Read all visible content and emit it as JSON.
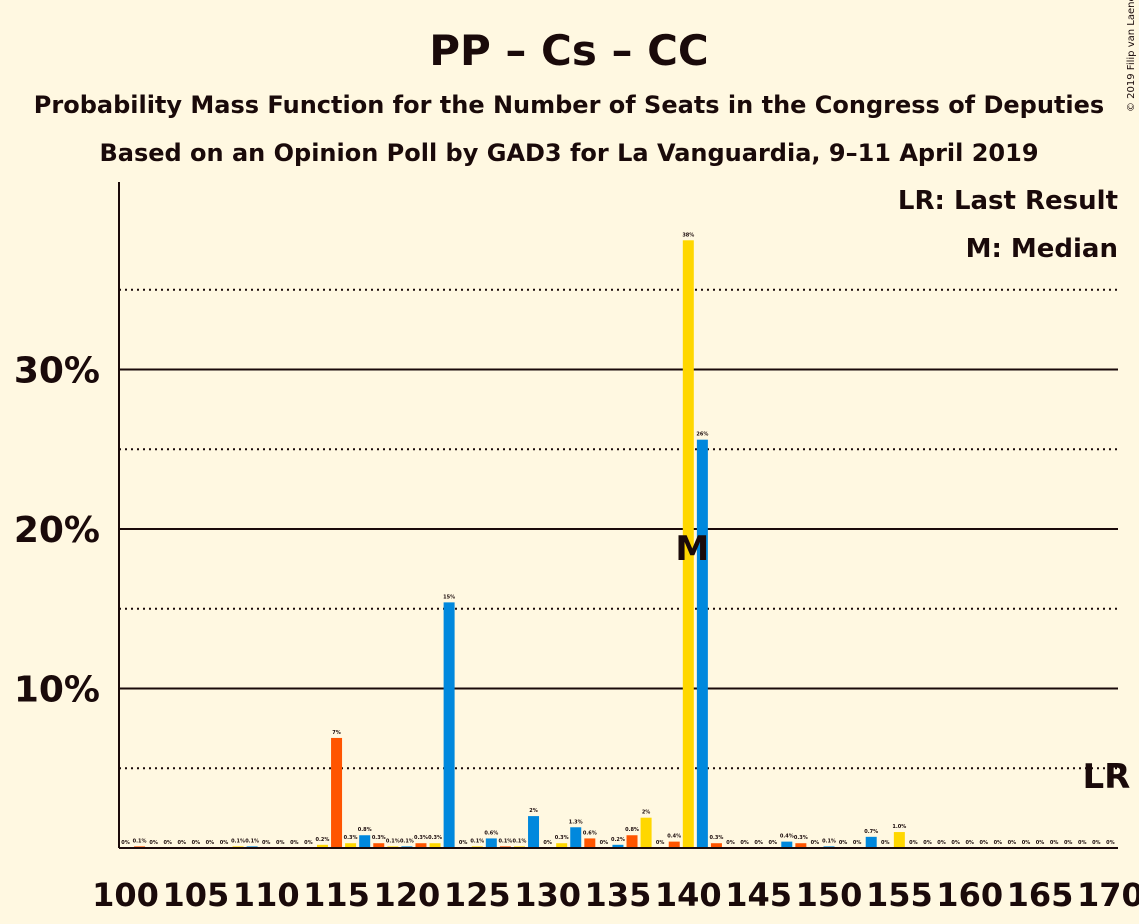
{
  "copyright": "© 2019 Filip van Laenen",
  "legend": {
    "lr": "LR: Last Result",
    "m": "M: Median"
  },
  "median_marker": "M",
  "last_result_marker": "LR",
  "colors": {
    "background": "#FFF8E1",
    "PP": "#0088DD",
    "Cs": "#FF5500",
    "CC": "#FFD700",
    "text": "#1a0a0a"
  },
  "chart_data": {
    "type": "bar",
    "title": "PP – Cs – CC",
    "subtitle": "Probability Mass Function for the Number of Seats in the Congress of Deputies",
    "subtitle2": "Based on an Opinion Poll by GAD3 for La Vanguardia, 9–11 April 2019",
    "xlabel": "",
    "ylabel": "",
    "x_range": [
      100,
      170
    ],
    "ylim": [
      0,
      41.5
    ],
    "y_ticks": [
      10,
      20,
      30
    ],
    "y_tick_labels": [
      "10%",
      "20%",
      "30%"
    ],
    "y_minor_ticks": [
      5,
      15,
      25,
      35
    ],
    "x_ticks": [
      100,
      105,
      110,
      115,
      120,
      125,
      130,
      135,
      140,
      145,
      150,
      155,
      160,
      165,
      170
    ],
    "median": 140,
    "last_result": 170,
    "grid": true,
    "legend_position": "top-right",
    "series": [
      {
        "name": "PP",
        "color": "#0088DD"
      },
      {
        "name": "Cs",
        "color": "#FF5500"
      },
      {
        "name": "CC",
        "color": "#FFD700"
      }
    ],
    "bars": [
      {
        "seats": 100,
        "party": "PP",
        "value": 0,
        "label": "0%"
      },
      {
        "seats": 101,
        "party": "Cs",
        "value": 0.1,
        "label": "0.1%"
      },
      {
        "seats": 102,
        "party": "CC",
        "value": 0,
        "label": "0%"
      },
      {
        "seats": 103,
        "party": "PP",
        "value": 0,
        "label": "0%"
      },
      {
        "seats": 104,
        "party": "Cs",
        "value": 0,
        "label": "0%"
      },
      {
        "seats": 105,
        "party": "CC",
        "value": 0,
        "label": "0%"
      },
      {
        "seats": 106,
        "party": "PP",
        "value": 0,
        "label": "0%"
      },
      {
        "seats": 107,
        "party": "Cs",
        "value": 0,
        "label": "0%"
      },
      {
        "seats": 108,
        "party": "CC",
        "value": 0.1,
        "label": "0.1%"
      },
      {
        "seats": 109,
        "party": "PP",
        "value": 0.1,
        "label": "0.1%"
      },
      {
        "seats": 110,
        "party": "Cs",
        "value": 0,
        "label": "0%"
      },
      {
        "seats": 111,
        "party": "CC",
        "value": 0,
        "label": "0%"
      },
      {
        "seats": 112,
        "party": "PP",
        "value": 0,
        "label": "0%"
      },
      {
        "seats": 113,
        "party": "Cs",
        "value": 0,
        "label": "0%"
      },
      {
        "seats": 114,
        "party": "CC",
        "value": 0.2,
        "label": "0.2%"
      },
      {
        "seats": 115,
        "party": "Cs",
        "value": 6.9,
        "label": "7%"
      },
      {
        "seats": 116,
        "party": "CC",
        "value": 0.3,
        "label": "0.3%"
      },
      {
        "seats": 117,
        "party": "PP",
        "value": 0.8,
        "label": "0.8%"
      },
      {
        "seats": 118,
        "party": "Cs",
        "value": 0.3,
        "label": "0.3%"
      },
      {
        "seats": 119,
        "party": "CC",
        "value": 0.1,
        "label": "0.1%"
      },
      {
        "seats": 120,
        "party": "PP",
        "value": 0.1,
        "label": "0.1%"
      },
      {
        "seats": 121,
        "party": "Cs",
        "value": 0.3,
        "label": "0.3%"
      },
      {
        "seats": 122,
        "party": "CC",
        "value": 0.3,
        "label": "0.3%"
      },
      {
        "seats": 123,
        "party": "PP",
        "value": 15.4,
        "label": "15%"
      },
      {
        "seats": 124,
        "party": "Cs",
        "value": 0,
        "label": "0%"
      },
      {
        "seats": 125,
        "party": "CC",
        "value": 0.1,
        "label": "0.1%"
      },
      {
        "seats": 126,
        "party": "PP",
        "value": 0.6,
        "label": "0.6%"
      },
      {
        "seats": 127,
        "party": "Cs",
        "value": 0.1,
        "label": "0.1%"
      },
      {
        "seats": 128,
        "party": "CC",
        "value": 0.1,
        "label": "0.1%"
      },
      {
        "seats": 129,
        "party": "PP",
        "value": 2.0,
        "label": "2%"
      },
      {
        "seats": 130,
        "party": "Cs",
        "value": 0,
        "label": "0%"
      },
      {
        "seats": 131,
        "party": "CC",
        "value": 0.3,
        "label": "0.3%"
      },
      {
        "seats": 132,
        "party": "PP",
        "value": 1.3,
        "label": "1.3%"
      },
      {
        "seats": 133,
        "party": "Cs",
        "value": 0.6,
        "label": "0.6%"
      },
      {
        "seats": 134,
        "party": "CC",
        "value": 0,
        "label": "0%"
      },
      {
        "seats": 135,
        "party": "PP",
        "value": 0.2,
        "label": "0.2%"
      },
      {
        "seats": 136,
        "party": "Cs",
        "value": 0.8,
        "label": "0.8%"
      },
      {
        "seats": 137,
        "party": "CC",
        "value": 1.9,
        "label": "2%"
      },
      {
        "seats": 138,
        "party": "PP",
        "value": 0,
        "label": "0%"
      },
      {
        "seats": 139,
        "party": "Cs",
        "value": 0.4,
        "label": "0.4%"
      },
      {
        "seats": 140,
        "party": "CC",
        "value": 38.1,
        "label": "38%"
      },
      {
        "seats": 141,
        "party": "PP",
        "value": 25.6,
        "label": "26%"
      },
      {
        "seats": 142,
        "party": "Cs",
        "value": 0.3,
        "label": "0.3%"
      },
      {
        "seats": 143,
        "party": "CC",
        "value": 0,
        "label": "0%"
      },
      {
        "seats": 144,
        "party": "PP",
        "value": 0,
        "label": "0%"
      },
      {
        "seats": 145,
        "party": "Cs",
        "value": 0,
        "label": "0%"
      },
      {
        "seats": 146,
        "party": "CC",
        "value": 0,
        "label": "0%"
      },
      {
        "seats": 147,
        "party": "PP",
        "value": 0.4,
        "label": "0.4%"
      },
      {
        "seats": 148,
        "party": "Cs",
        "value": 0.3,
        "label": "0.3%"
      },
      {
        "seats": 149,
        "party": "CC",
        "value": 0,
        "label": "0%"
      },
      {
        "seats": 150,
        "party": "PP",
        "value": 0.1,
        "label": "0.1%"
      },
      {
        "seats": 151,
        "party": "Cs",
        "value": 0,
        "label": "0%"
      },
      {
        "seats": 152,
        "party": "CC",
        "value": 0,
        "label": "0%"
      },
      {
        "seats": 153,
        "party": "PP",
        "value": 0.7,
        "label": "0.7%"
      },
      {
        "seats": 154,
        "party": "Cs",
        "value": 0,
        "label": "0%"
      },
      {
        "seats": 155,
        "party": "CC",
        "value": 1.0,
        "label": "1.0%"
      },
      {
        "seats": 156,
        "party": "PP",
        "value": 0,
        "label": "0%"
      },
      {
        "seats": 157,
        "party": "Cs",
        "value": 0,
        "label": "0%"
      },
      {
        "seats": 158,
        "party": "CC",
        "value": 0,
        "label": "0%"
      },
      {
        "seats": 159,
        "party": "PP",
        "value": 0,
        "label": "0%"
      },
      {
        "seats": 160,
        "party": "Cs",
        "value": 0,
        "label": "0%"
      },
      {
        "seats": 161,
        "party": "CC",
        "value": 0,
        "label": "0%"
      },
      {
        "seats": 162,
        "party": "PP",
        "value": 0,
        "label": "0%"
      },
      {
        "seats": 163,
        "party": "Cs",
        "value": 0,
        "label": "0%"
      },
      {
        "seats": 164,
        "party": "CC",
        "value": 0,
        "label": "0%"
      },
      {
        "seats": 165,
        "party": "PP",
        "value": 0,
        "label": "0%"
      },
      {
        "seats": 166,
        "party": "Cs",
        "value": 0,
        "label": "0%"
      },
      {
        "seats": 167,
        "party": "CC",
        "value": 0,
        "label": "0%"
      },
      {
        "seats": 168,
        "party": "PP",
        "value": 0,
        "label": "0%"
      },
      {
        "seats": 169,
        "party": "Cs",
        "value": 0,
        "label": "0%"
      },
      {
        "seats": 170,
        "party": "CC",
        "value": 0,
        "label": "0%"
      }
    ]
  }
}
